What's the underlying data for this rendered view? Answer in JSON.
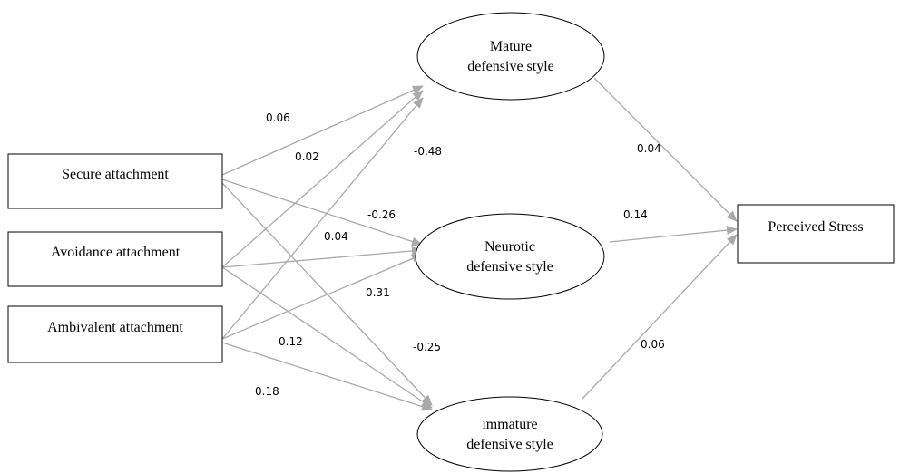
{
  "nodes": {
    "secure": {
      "lines": [
        "Secure attachment"
      ]
    },
    "avoidance": {
      "lines": [
        "Avoidance attachment"
      ]
    },
    "ambivalent": {
      "lines": [
        "Ambivalent attachment"
      ]
    },
    "mature": {
      "lines": [
        "Mature",
        "defensive style"
      ]
    },
    "neurotic": {
      "lines": [
        "Neurotic",
        "defensive style"
      ]
    },
    "immature": {
      "lines": [
        "immature",
        "defensive style"
      ]
    },
    "stress": {
      "lines": [
        "Perceived Stress"
      ]
    }
  },
  "paths": [
    {
      "from": "secure",
      "to": "mature",
      "coefficient": "0.06"
    },
    {
      "from": "avoidance",
      "to": "mature",
      "coefficient": "0.02"
    },
    {
      "from": "ambivalent",
      "to": "mature",
      "coefficient": "-0.48"
    },
    {
      "from": "secure",
      "to": "neurotic",
      "coefficient": "-0.26"
    },
    {
      "from": "avoidance",
      "to": "neurotic",
      "coefficient": "0.04"
    },
    {
      "from": "ambivalent",
      "to": "neurotic",
      "coefficient": "0.31"
    },
    {
      "from": "secure",
      "to": "immature",
      "coefficient": "-0.25"
    },
    {
      "from": "avoidance",
      "to": "immature",
      "coefficient": "0.12"
    },
    {
      "from": "ambivalent",
      "to": "immature",
      "coefficient": "0.18"
    },
    {
      "from": "mature",
      "to": "stress",
      "coefficient": "0.04"
    },
    {
      "from": "neurotic",
      "to": "stress",
      "coefficient": "0.14"
    },
    {
      "from": "immature",
      "to": "stress",
      "coefficient": "0.06"
    }
  ],
  "colors": {
    "arrow": "#a9a9a9",
    "outline": "#000000"
  }
}
